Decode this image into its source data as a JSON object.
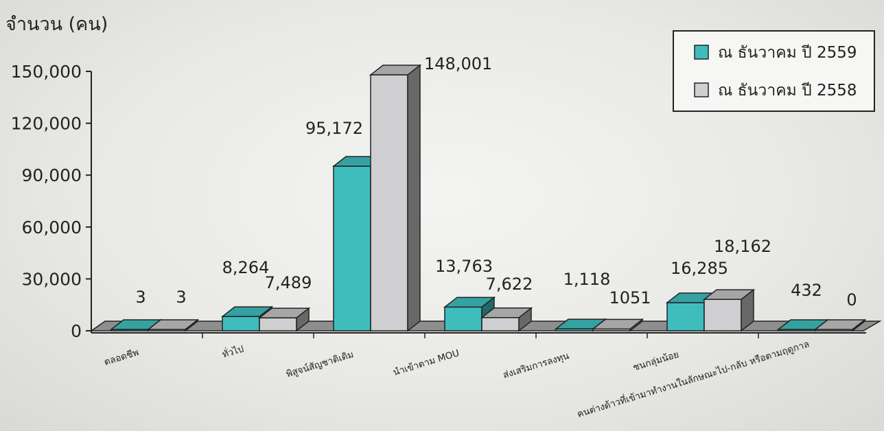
{
  "chart_data": {
    "type": "bar",
    "ylabel": "จำนวน (คน)",
    "ylim": [
      0,
      150000
    ],
    "yticks": [
      "0",
      "30,000",
      "60,000",
      "90,000",
      "120,000",
      "150,000"
    ],
    "categories": [
      "ตลอดชีพ",
      "ทั่วไป",
      "พิสูจน์สัญชาติเดิม",
      "นำเข้าตาม MOU",
      "ส่งเสริมการลงทุน",
      "ชนกลุ่มน้อย",
      "คนต่างด้าวที่เข้ามาทำงานในลักษณะไป-กลับ หรือตามฤดูกาล"
    ],
    "series": [
      {
        "name": "ณ ธันวาคม ปี 2559",
        "color": "#3fbdbd",
        "values": [
          3,
          8264,
          95172,
          13763,
          1118,
          16285,
          432
        ],
        "labels": [
          "3",
          "8,264",
          "95,172",
          "13,763",
          "1,118",
          "16,285",
          "432"
        ]
      },
      {
        "name": "ณ ธันวาคม ปี 2558",
        "color": "#cfcfd1",
        "values": [
          3,
          7489,
          148001,
          7622,
          1051,
          18162,
          0
        ],
        "labels": [
          "3",
          "7,489",
          "148,001",
          "7,622",
          "1051",
          "18,162",
          "0"
        ]
      }
    ],
    "legend_position": "top-right",
    "grid": false,
    "three_d": true
  }
}
